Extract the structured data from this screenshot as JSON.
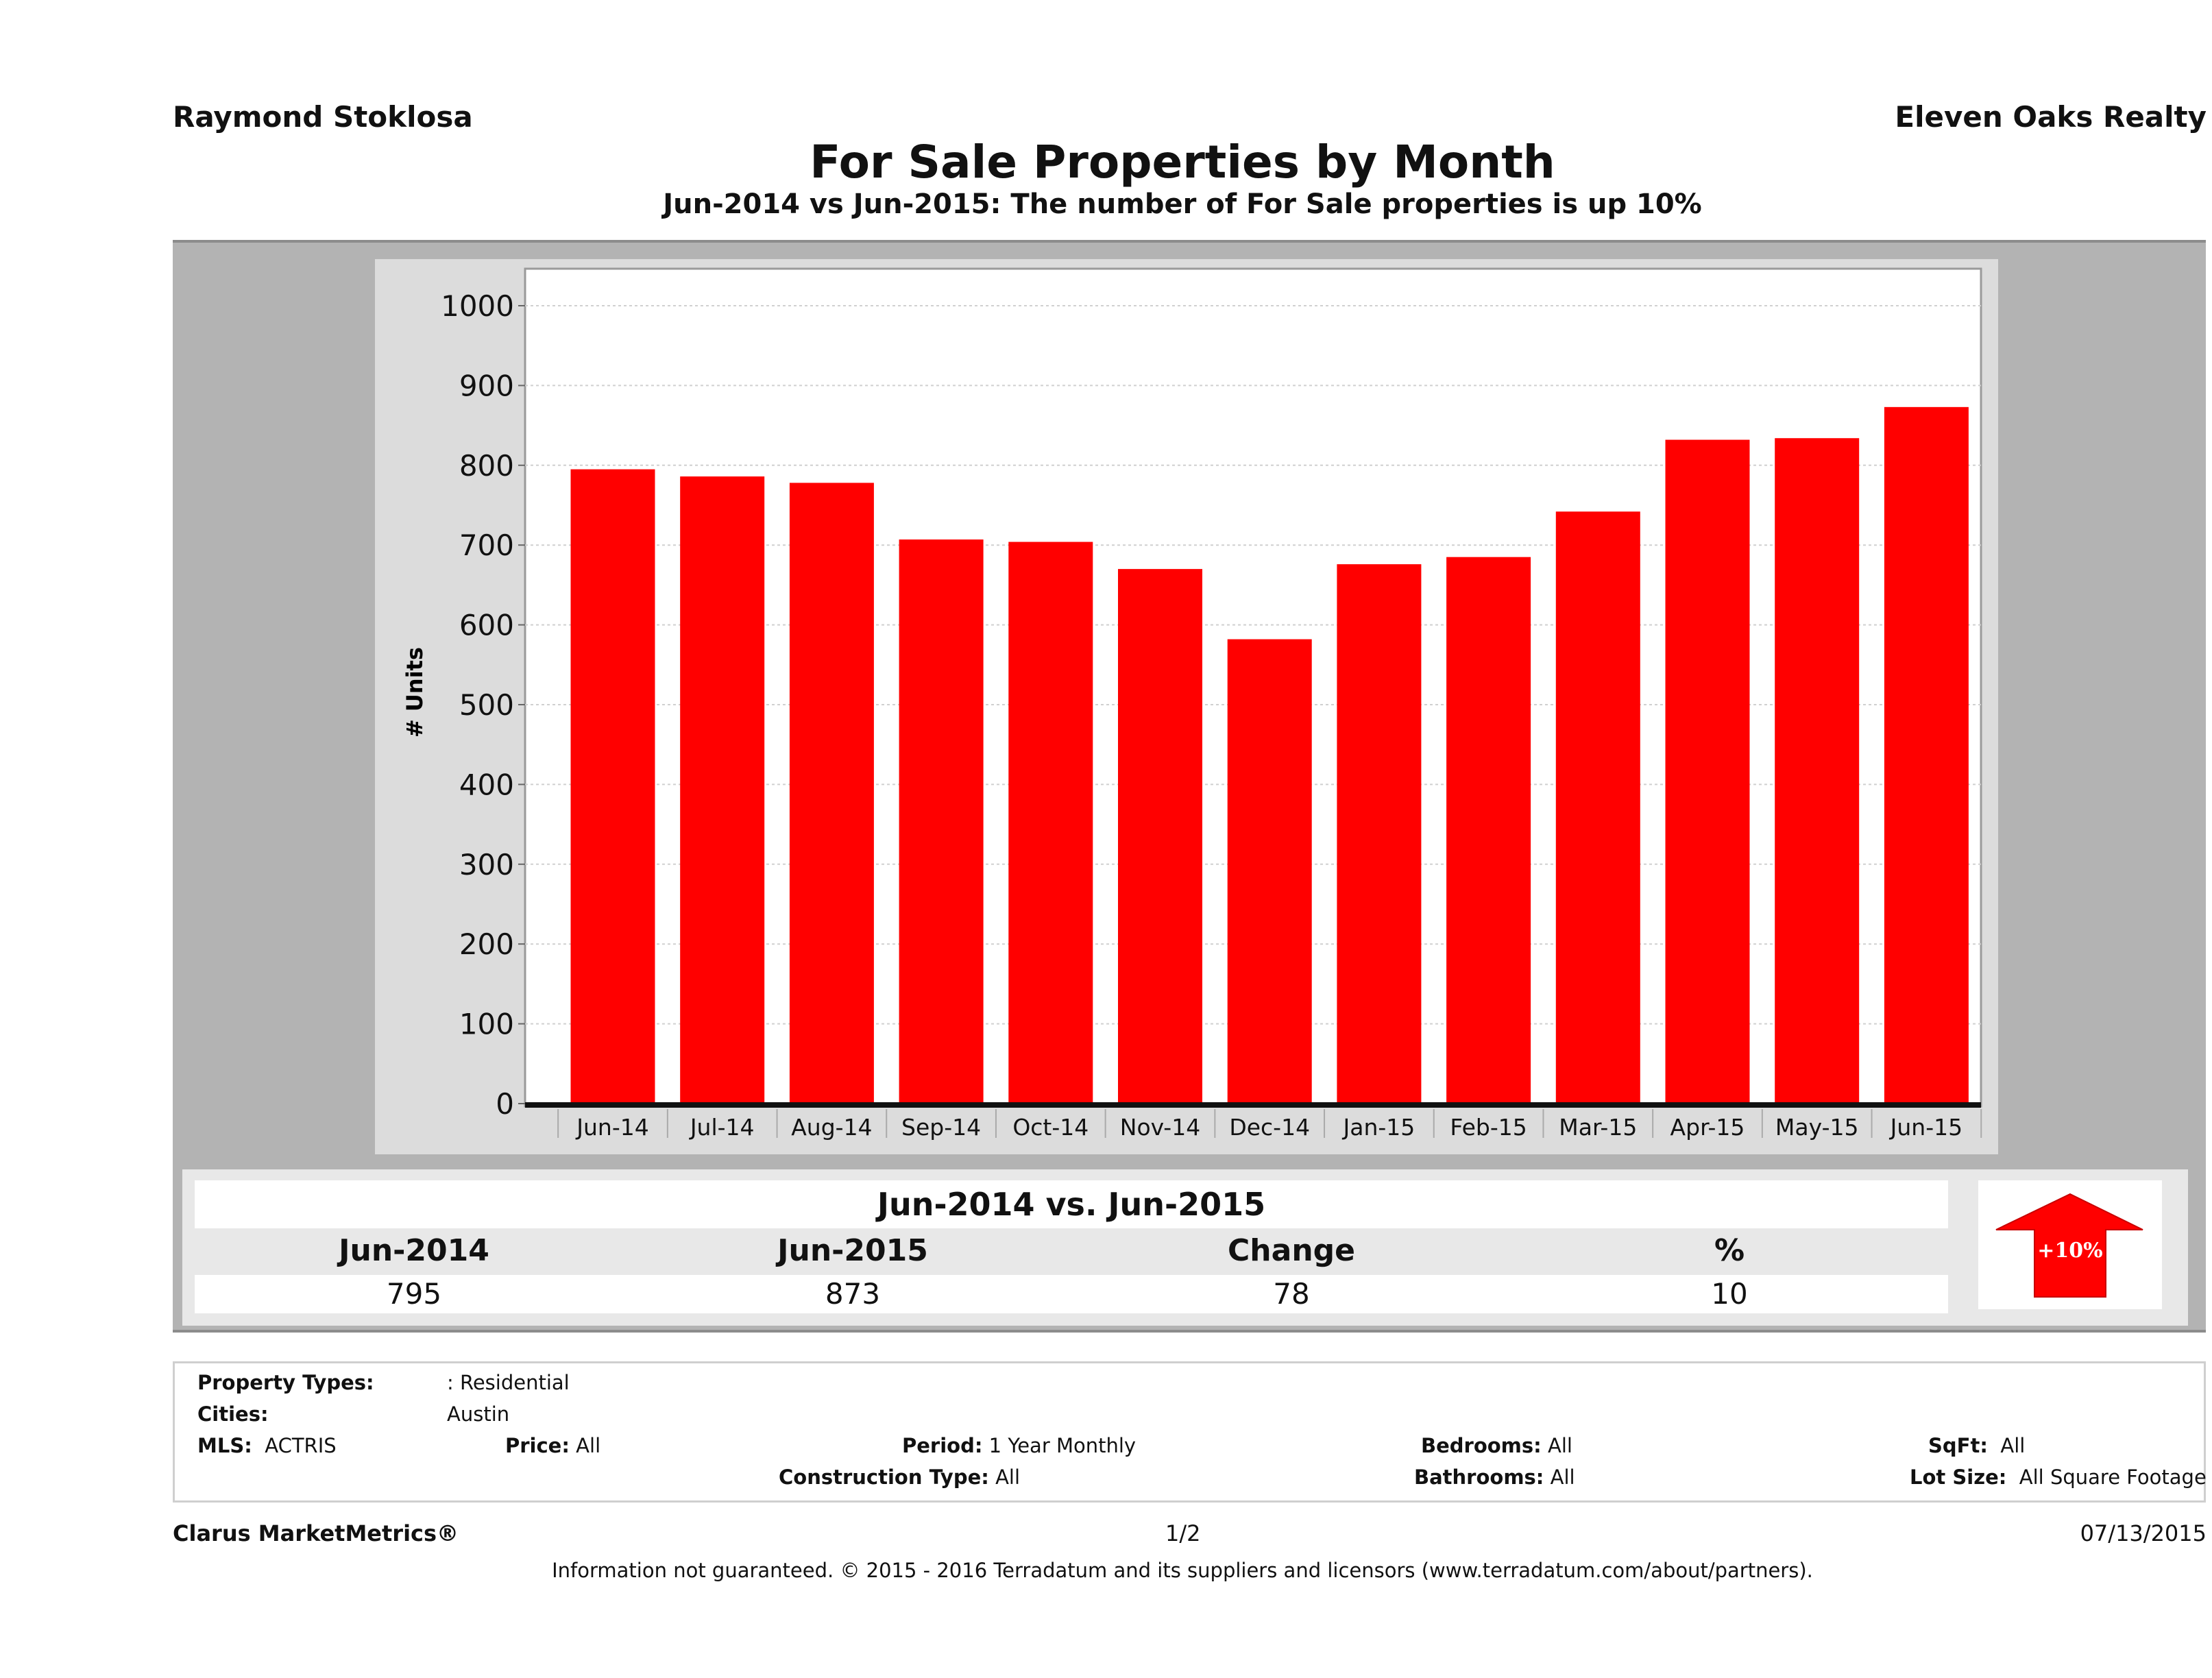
{
  "header": {
    "agent_name": "Raymond Stoklosa",
    "brokerage": "Eleven Oaks Realty"
  },
  "chart_data": {
    "type": "bar",
    "title": "For Sale Properties by Month",
    "subtitle": "Jun-2014 vs Jun-2015: The number of For Sale  properties is up 10%",
    "xlabel": "",
    "ylabel": "# Units",
    "ylim": [
      0,
      1000
    ],
    "yticks": [
      0,
      100,
      200,
      300,
      400,
      500,
      600,
      700,
      800,
      900,
      1000
    ],
    "grid": true,
    "categories": [
      "Jun-14",
      "Jul-14",
      "Aug-14",
      "Sep-14",
      "Oct-14",
      "Nov-14",
      "Dec-14",
      "Jan-15",
      "Feb-15",
      "Mar-15",
      "Apr-15",
      "May-15",
      "Jun-15"
    ],
    "values": [
      795,
      786,
      778,
      707,
      704,
      670,
      582,
      676,
      685,
      742,
      832,
      834,
      873
    ],
    "bar_color": "#ff0000"
  },
  "summary": {
    "heading": "Jun-2014 vs. Jun-2015",
    "columns": [
      "Jun-2014",
      "Jun-2015",
      "Change",
      "%"
    ],
    "values": [
      "795",
      "873",
      "78",
      "10"
    ],
    "badge": {
      "icon": "up-arrow-icon",
      "label": "+10%",
      "color": "#ff0000"
    }
  },
  "criteria": {
    "property_types_label": "Property Types:",
    "property_types_value": ": Residential",
    "cities_label": "Cities:",
    "cities_value": "Austin",
    "mls_label": "MLS:",
    "mls_value": "ACTRIS",
    "price_label": "Price:",
    "price_value": "All",
    "period_label": "Period:",
    "period_value": "1 Year Monthly",
    "construction_label": "Construction Type:",
    "construction_value": "All",
    "bedrooms_label": "Bedrooms:",
    "bedrooms_value": "All",
    "bathrooms_label": "Bathrooms:",
    "bathrooms_value": "All",
    "sqft_label": "SqFt:",
    "sqft_value": "All",
    "lot_label": "Lot Size:",
    "lot_value": "All Square Footage"
  },
  "footer": {
    "brand": "Clarus MarketMetrics®",
    "page": "1/2",
    "date": "07/13/2015",
    "disclaimer": "Information not guaranteed. © 2015 - 2016 Terradatum and its suppliers and licensors (www.terradatum.com/about/partners)."
  }
}
